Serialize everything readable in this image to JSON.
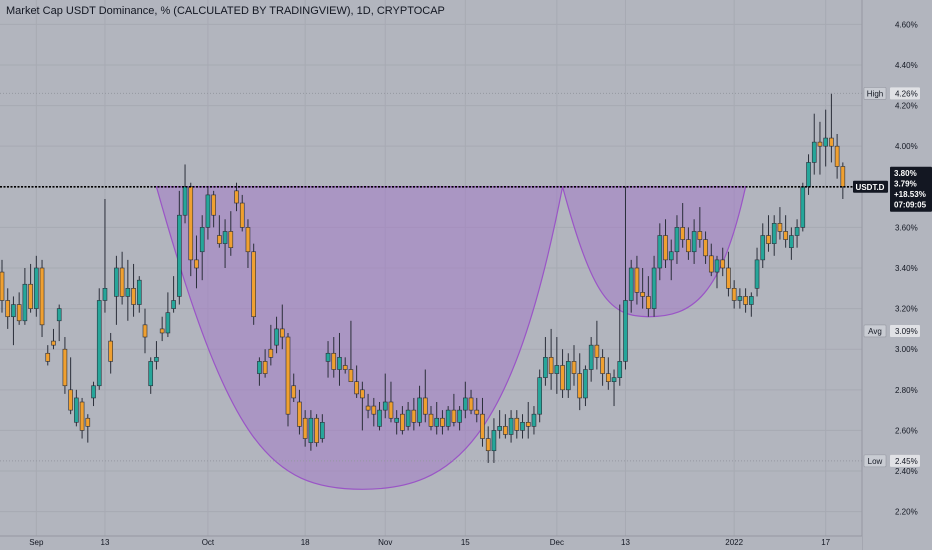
{
  "header": {
    "title": "Market Cap USDT Dominance, % (CALCULATED BY TRADINGVIEW), 1D, CRYPTOCAP"
  },
  "symbol_tag": {
    "label": "USDT.D",
    "price_high": "3.80%",
    "price": "3.79%",
    "change": "+18.53%",
    "countdown": "07:09:05"
  },
  "markers": {
    "high": {
      "label": "High",
      "value": "4.26%"
    },
    "avg": {
      "label": "Avg",
      "value": "3.09%"
    },
    "low": {
      "label": "Low",
      "value": "2.45%"
    }
  },
  "colors": {
    "background": "#b2b5be",
    "up": "#26a69a",
    "down": "#f0a030",
    "wick": "#2a2e39",
    "cup_fill": "#a47cc6",
    "cup_stroke": "#9a55c6",
    "neckline": "#000000"
  },
  "chart_data": {
    "type": "candlestick",
    "title": "Market Cap USDT Dominance, % (CALCULATED BY TRADINGVIEW), 1D, CRYPTOCAP",
    "y_axis": {
      "unit": "%",
      "ticks": [
        2.2,
        2.4,
        2.6,
        2.8,
        3.0,
        3.2,
        3.4,
        3.6,
        3.8,
        4.0,
        4.2,
        4.4,
        4.6
      ],
      "tick_labels": [
        "2.20%",
        "2.40%",
        "2.60%",
        "2.80%",
        "3.00%",
        "3.20%",
        "3.40%",
        "3.60%",
        "3.80%",
        "4.00%",
        "4.20%",
        "4.40%",
        "4.60%"
      ],
      "range": [
        2.08,
        4.72
      ]
    },
    "x_axis": {
      "tick_labels": [
        {
          "label": "Sep",
          "index": 6
        },
        {
          "label": "13",
          "index": 18
        },
        {
          "label": "Oct",
          "index": 36
        },
        {
          "label": "18",
          "index": 53
        },
        {
          "label": "Nov",
          "index": 67
        },
        {
          "label": "15",
          "index": 81
        },
        {
          "label": "Dec",
          "index": 97
        },
        {
          "label": "13",
          "index": 109
        },
        {
          "label": "2022",
          "index": 128
        },
        {
          "label": "17",
          "index": 144
        }
      ]
    },
    "levels": {
      "neckline": 3.8,
      "high": 4.26,
      "avg": 3.09,
      "low": 2.45
    },
    "cup_shapes": [
      {
        "name": "cup",
        "start_index": 27,
        "bottom_index": 63,
        "end_index": 98,
        "rim": 3.8,
        "bottom": 2.31
      },
      {
        "name": "handle",
        "start_index": 98,
        "bottom_index": 113,
        "end_index": 130,
        "rim": 3.8,
        "bottom": 3.16
      }
    ],
    "candles": [
      [
        3.38,
        3.44,
        3.18,
        3.24
      ],
      [
        3.24,
        3.3,
        3.1,
        3.16
      ],
      [
        3.16,
        3.26,
        3.02,
        3.22
      ],
      [
        3.22,
        3.28,
        3.12,
        3.14
      ],
      [
        3.14,
        3.4,
        3.12,
        3.32
      ],
      [
        3.32,
        3.42,
        3.18,
        3.2
      ],
      [
        3.2,
        3.46,
        3.16,
        3.4
      ],
      [
        3.4,
        3.44,
        3.06,
        3.12
      ],
      [
        2.98,
        3.02,
        2.92,
        2.94
      ],
      [
        3.04,
        3.1,
        3.0,
        3.02
      ],
      [
        3.14,
        3.22,
        3.04,
        3.2
      ],
      [
        3.0,
        3.06,
        2.78,
        2.82
      ],
      [
        2.8,
        2.96,
        2.68,
        2.7
      ],
      [
        2.64,
        2.8,
        2.62,
        2.76
      ],
      [
        2.74,
        2.76,
        2.56,
        2.6
      ],
      [
        2.66,
        2.68,
        2.54,
        2.62
      ],
      [
        2.76,
        2.84,
        2.72,
        2.82
      ],
      [
        2.82,
        3.3,
        2.8,
        3.24
      ],
      [
        3.24,
        3.74,
        3.18,
        3.3
      ],
      [
        3.04,
        3.08,
        2.88,
        2.94
      ],
      [
        3.26,
        3.46,
        3.12,
        3.4
      ],
      [
        3.4,
        3.48,
        3.22,
        3.26
      ],
      [
        3.26,
        3.44,
        3.14,
        3.3
      ],
      [
        3.3,
        3.42,
        3.16,
        3.22
      ],
      [
        3.22,
        3.36,
        3.18,
        3.34
      ],
      [
        3.12,
        3.2,
        2.98,
        3.06
      ],
      [
        2.82,
        2.96,
        2.78,
        2.94
      ],
      [
        2.94,
        3.04,
        2.9,
        2.96
      ],
      [
        3.1,
        3.16,
        3.04,
        3.08
      ],
      [
        3.08,
        3.28,
        3.06,
        3.18
      ],
      [
        3.2,
        3.36,
        3.18,
        3.24
      ],
      [
        3.26,
        3.78,
        3.22,
        3.66
      ],
      [
        3.66,
        3.91,
        3.62,
        3.8
      ],
      [
        3.8,
        3.82,
        3.36,
        3.44
      ],
      [
        3.44,
        3.56,
        3.3,
        3.4
      ],
      [
        3.48,
        3.66,
        3.34,
        3.6
      ],
      [
        3.6,
        3.8,
        3.54,
        3.76
      ],
      [
        3.76,
        3.78,
        3.6,
        3.66
      ],
      [
        3.56,
        3.66,
        3.5,
        3.52
      ],
      [
        3.52,
        3.64,
        3.4,
        3.58
      ],
      [
        3.58,
        3.68,
        3.46,
        3.5
      ],
      [
        3.78,
        3.82,
        3.68,
        3.72
      ],
      [
        3.72,
        3.76,
        3.58,
        3.6
      ],
      [
        3.6,
        3.64,
        3.4,
        3.48
      ],
      [
        3.48,
        3.52,
        3.12,
        3.16
      ],
      [
        2.88,
        2.96,
        2.82,
        2.94
      ],
      [
        2.94,
        3.0,
        2.86,
        2.88
      ],
      [
        3.0,
        3.12,
        2.92,
        2.96
      ],
      [
        3.02,
        3.16,
        2.98,
        3.1
      ],
      [
        3.1,
        3.22,
        3.0,
        3.06
      ],
      [
        3.06,
        3.08,
        2.62,
        2.68
      ],
      [
        2.82,
        2.88,
        2.74,
        2.76
      ],
      [
        2.74,
        2.8,
        2.58,
        2.62
      ],
      [
        2.66,
        2.7,
        2.52,
        2.56
      ],
      [
        2.54,
        2.7,
        2.5,
        2.66
      ],
      [
        2.66,
        2.68,
        2.52,
        2.54
      ],
      [
        2.56,
        2.68,
        2.54,
        2.64
      ],
      [
        2.94,
        3.04,
        2.86,
        2.98
      ],
      [
        2.98,
        3.06,
        2.86,
        2.9
      ],
      [
        2.9,
        3.08,
        2.82,
        2.96
      ],
      [
        2.92,
        2.96,
        2.88,
        2.9
      ],
      [
        2.9,
        3.14,
        2.86,
        2.84
      ],
      [
        2.84,
        2.92,
        2.76,
        2.78
      ],
      [
        2.8,
        2.84,
        2.6,
        2.76
      ],
      [
        2.72,
        2.78,
        2.66,
        2.7
      ],
      [
        2.72,
        2.76,
        2.62,
        2.68
      ],
      [
        2.62,
        2.74,
        2.6,
        2.7
      ],
      [
        2.7,
        2.88,
        2.66,
        2.74
      ],
      [
        2.74,
        2.84,
        2.64,
        2.66
      ],
      [
        2.64,
        2.7,
        2.58,
        2.66
      ],
      [
        2.68,
        2.72,
        2.58,
        2.6
      ],
      [
        2.62,
        2.74,
        2.6,
        2.7
      ],
      [
        2.7,
        2.76,
        2.6,
        2.64
      ],
      [
        2.64,
        2.82,
        2.62,
        2.76
      ],
      [
        2.76,
        2.9,
        2.64,
        2.68
      ],
      [
        2.68,
        2.72,
        2.6,
        2.62
      ],
      [
        2.62,
        2.74,
        2.58,
        2.66
      ],
      [
        2.66,
        2.7,
        2.58,
        2.62
      ],
      [
        2.62,
        2.72,
        2.6,
        2.7
      ],
      [
        2.7,
        2.78,
        2.62,
        2.64
      ],
      [
        2.64,
        2.72,
        2.6,
        2.7
      ],
      [
        2.7,
        2.84,
        2.66,
        2.76
      ],
      [
        2.76,
        2.8,
        2.68,
        2.7
      ],
      [
        2.7,
        2.76,
        2.64,
        2.68
      ],
      [
        2.68,
        2.76,
        2.52,
        2.56
      ],
      [
        2.56,
        2.62,
        2.44,
        2.5
      ],
      [
        2.5,
        2.66,
        2.44,
        2.6
      ],
      [
        2.6,
        2.7,
        2.56,
        2.62
      ],
      [
        2.62,
        2.68,
        2.56,
        2.58
      ],
      [
        2.58,
        2.7,
        2.54,
        2.66
      ],
      [
        2.66,
        2.7,
        2.56,
        2.6
      ],
      [
        2.6,
        2.68,
        2.56,
        2.64
      ],
      [
        2.64,
        2.74,
        2.56,
        2.62
      ],
      [
        2.62,
        2.72,
        2.58,
        2.68
      ],
      [
        2.68,
        2.9,
        2.64,
        2.86
      ],
      [
        2.86,
        3.06,
        2.82,
        2.96
      ],
      [
        2.96,
        3.1,
        2.8,
        2.88
      ],
      [
        2.88,
        3.06,
        2.78,
        2.92
      ],
      [
        2.92,
        3.0,
        2.76,
        2.8
      ],
      [
        2.8,
        2.98,
        2.76,
        2.94
      ],
      [
        2.94,
        3.02,
        2.82,
        2.88
      ],
      [
        2.88,
        2.98,
        2.7,
        2.76
      ],
      [
        2.76,
        2.92,
        2.72,
        2.9
      ],
      [
        2.9,
        3.06,
        2.84,
        3.02
      ],
      [
        3.02,
        3.14,
        2.9,
        2.96
      ],
      [
        2.96,
        3.0,
        2.82,
        2.88
      ],
      [
        2.88,
        2.96,
        2.8,
        2.84
      ],
      [
        2.84,
        2.9,
        2.72,
        2.86
      ],
      [
        2.86,
        3.22,
        2.82,
        2.94
      ],
      [
        2.94,
        3.8,
        2.9,
        3.24
      ],
      [
        3.24,
        3.44,
        3.18,
        3.4
      ],
      [
        3.4,
        3.46,
        3.22,
        3.28
      ],
      [
        3.28,
        3.4,
        3.2,
        3.26
      ],
      [
        3.26,
        3.36,
        3.16,
        3.2
      ],
      [
        3.2,
        3.46,
        3.16,
        3.4
      ],
      [
        3.4,
        3.62,
        3.34,
        3.56
      ],
      [
        3.56,
        3.64,
        3.4,
        3.44
      ],
      [
        3.44,
        3.54,
        3.34,
        3.48
      ],
      [
        3.48,
        3.66,
        3.42,
        3.6
      ],
      [
        3.6,
        3.72,
        3.5,
        3.54
      ],
      [
        3.54,
        3.6,
        3.44,
        3.48
      ],
      [
        3.48,
        3.64,
        3.42,
        3.58
      ],
      [
        3.58,
        3.7,
        3.5,
        3.54
      ],
      [
        3.54,
        3.58,
        3.42,
        3.46
      ],
      [
        3.46,
        3.52,
        3.36,
        3.38
      ],
      [
        3.38,
        3.46,
        3.3,
        3.44
      ],
      [
        3.44,
        3.5,
        3.36,
        3.4
      ],
      [
        3.4,
        3.48,
        3.26,
        3.3
      ],
      [
        3.3,
        3.34,
        3.2,
        3.24
      ],
      [
        3.24,
        3.3,
        3.2,
        3.26
      ],
      [
        3.26,
        3.3,
        3.18,
        3.22
      ],
      [
        3.22,
        3.28,
        3.16,
        3.26
      ],
      [
        3.3,
        3.5,
        3.26,
        3.44
      ],
      [
        3.44,
        3.62,
        3.4,
        3.56
      ],
      [
        3.56,
        3.66,
        3.48,
        3.52
      ],
      [
        3.52,
        3.66,
        3.46,
        3.62
      ],
      [
        3.62,
        3.7,
        3.54,
        3.58
      ],
      [
        3.58,
        3.66,
        3.5,
        3.54
      ],
      [
        3.5,
        3.6,
        3.44,
        3.56
      ],
      [
        3.56,
        3.64,
        3.5,
        3.6
      ],
      [
        3.6,
        3.82,
        3.58,
        3.8
      ],
      [
        3.8,
        3.96,
        3.76,
        3.92
      ],
      [
        3.92,
        4.16,
        3.86,
        4.02
      ],
      [
        4.02,
        4.12,
        3.86,
        4.0
      ],
      [
        4.0,
        4.18,
        3.9,
        4.04
      ],
      [
        4.04,
        4.26,
        3.92,
        4.0
      ],
      [
        4.0,
        4.06,
        3.84,
        3.9
      ],
      [
        3.9,
        3.92,
        3.74,
        3.8
      ]
    ]
  }
}
